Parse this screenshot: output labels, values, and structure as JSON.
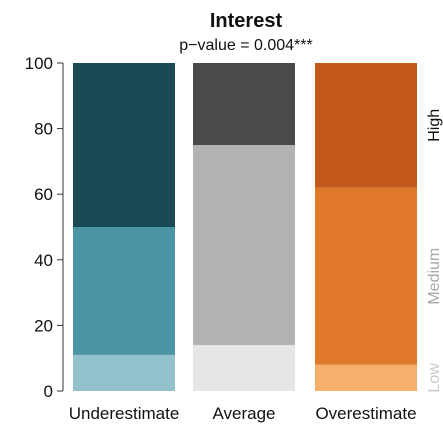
{
  "chart_data": {
    "type": "bar",
    "stacked": true,
    "title": "Interest",
    "subtitle": "p−value =  0.004***",
    "categories": [
      "Underestimate",
      "Average",
      "Overestimate"
    ],
    "ylim": [
      0,
      100
    ],
    "yticks": [
      0,
      20,
      40,
      60,
      80,
      100
    ],
    "levels": [
      {
        "label": "Low",
        "color": "#c9c9c9"
      },
      {
        "label": "Medium",
        "color": "#a8a8a8"
      },
      {
        "label": "High",
        "color": "#111111"
      }
    ],
    "segments": [
      {
        "category": "Underestimate",
        "low": 11,
        "medium": 39,
        "high": 50,
        "colors": {
          "low": "#93c1cc",
          "medium": "#4c95a6",
          "high": "#1b4a55"
        }
      },
      {
        "category": "Average",
        "low": 14,
        "medium": 61,
        "high": 25,
        "colors": {
          "low": "#e6e6e6",
          "medium": "#b3b3b3",
          "high": "#4a4a4a"
        }
      },
      {
        "category": "Overestimate",
        "low": 8,
        "medium": 54,
        "high": 38,
        "colors": {
          "low": "#f5b06e",
          "medium": "#e07a2a",
          "high": "#c3591a"
        }
      }
    ],
    "grid": false,
    "legend": "right-side level labels"
  }
}
